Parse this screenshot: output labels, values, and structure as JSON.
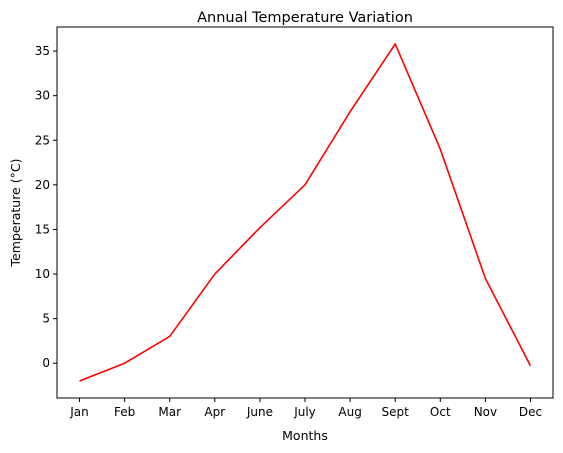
{
  "chart_data": {
    "type": "line",
    "title": "Annual Temperature Variation",
    "xlabel": "Months",
    "ylabel": "Temperature (°C)",
    "categories": [
      "Jan",
      "Feb",
      "Mar",
      "Apr",
      "June",
      "July",
      "Aug",
      "Sept",
      "Oct",
      "Nov",
      "Dec"
    ],
    "series": [
      {
        "values": [
          -2,
          0,
          3,
          10,
          15.2,
          20,
          28.2,
          35.8,
          24,
          9.5,
          -0.3
        ],
        "color": "#ff0000"
      }
    ],
    "ylim": [
      -3.9,
      37.7
    ],
    "yticks": [
      0,
      5,
      10,
      15,
      20,
      25,
      30,
      35
    ],
    "ytick_labels": [
      "0",
      "5",
      "10",
      "15",
      "20",
      "25",
      "30",
      "35"
    ],
    "grid": false,
    "legend": false
  }
}
